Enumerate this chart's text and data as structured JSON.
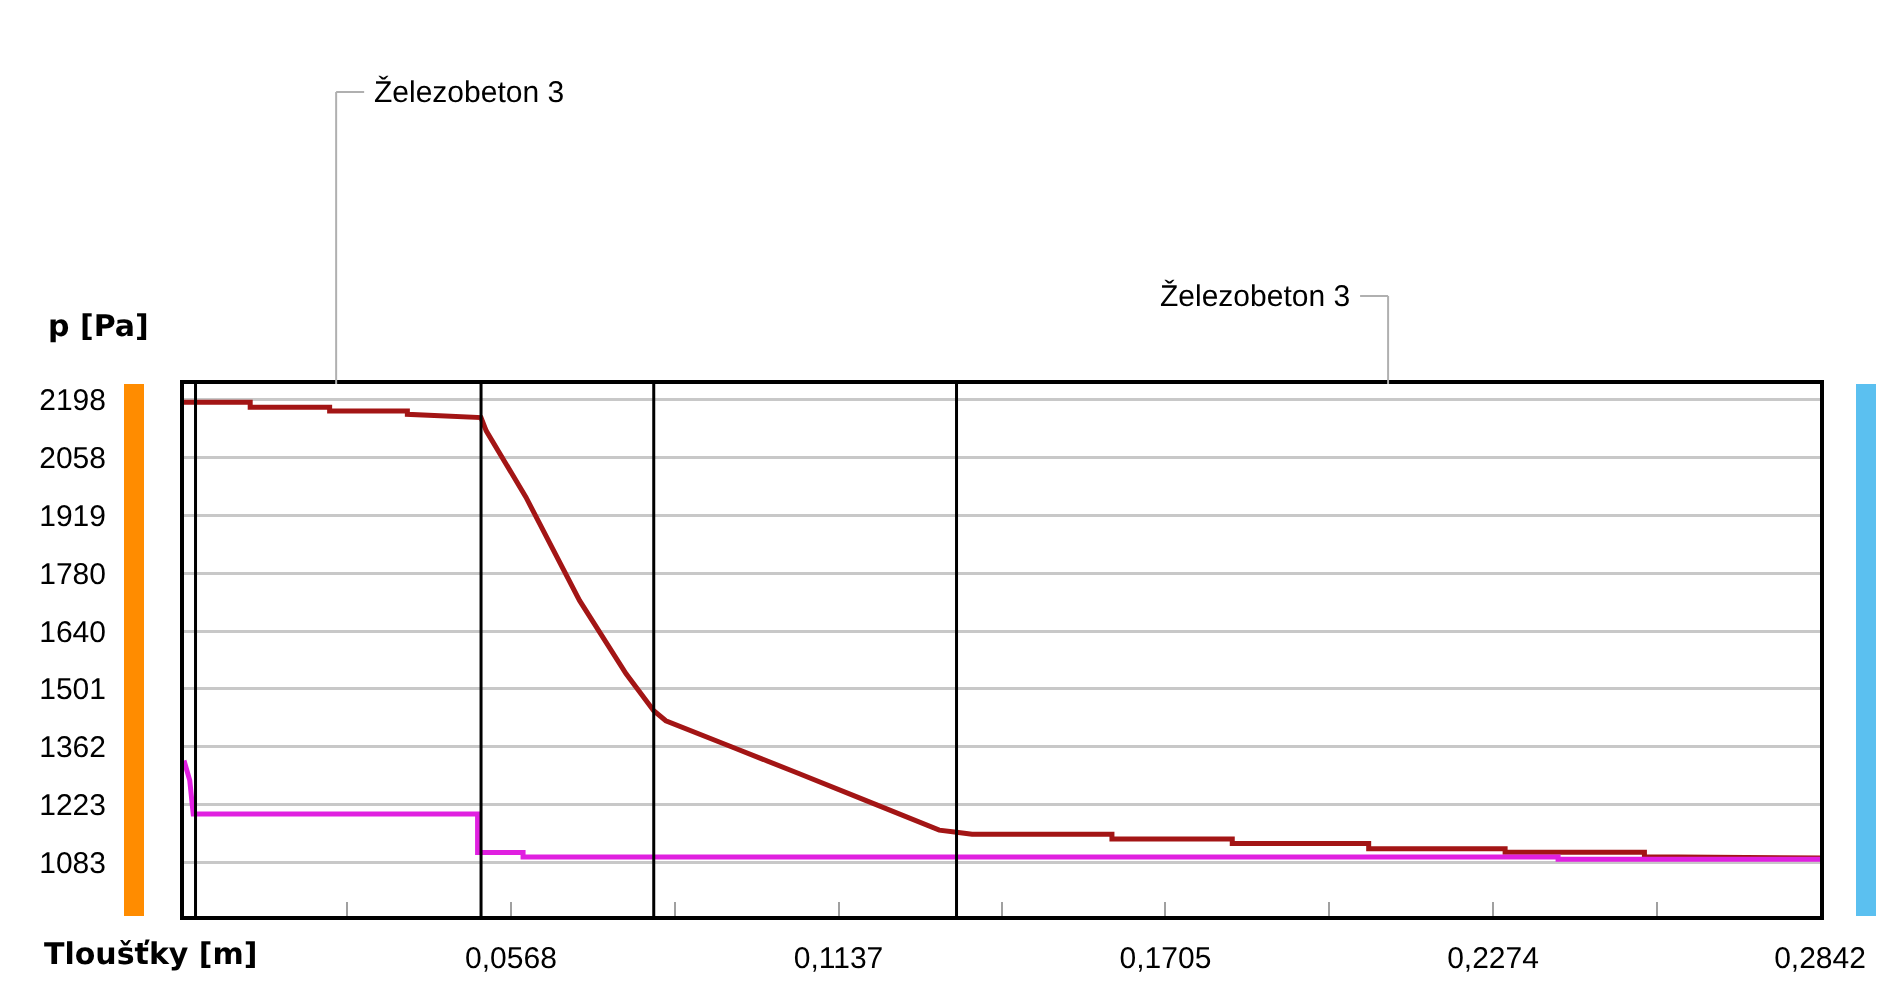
{
  "chart_data": {
    "type": "line",
    "ylabel": "p [Pa]",
    "xlabel": "Tloušťky [m]",
    "xlim": [
      0,
      0.2842
    ],
    "ylim": [
      953,
      2236
    ],
    "xticks": [
      {
        "value": 0.0284,
        "label": null
      },
      {
        "value": 0.0568,
        "label": "0,0568"
      },
      {
        "value": 0.0853,
        "label": null
      },
      {
        "value": 0.1137,
        "label": "0,1137"
      },
      {
        "value": 0.1421,
        "label": null
      },
      {
        "value": 0.1705,
        "label": "0,1705"
      },
      {
        "value": 0.1989,
        "label": null
      },
      {
        "value": 0.2274,
        "label": "0,2274"
      },
      {
        "value": 0.2558,
        "label": null
      },
      {
        "value": 0.2842,
        "label": "0,2842"
      }
    ],
    "yticks": [
      1083,
      1223,
      1362,
      1501,
      1640,
      1780,
      1919,
      2058,
      2198
    ],
    "grid": "y",
    "marker": "none",
    "line_style": "solid",
    "series": [
      {
        "color": "#a31515",
        "x": [
          0,
          0.0115,
          0.0115,
          0.0253,
          0.0253,
          0.0388,
          0.0388,
          0.0516,
          0.0525,
          0.0594,
          0.0687,
          0.0768,
          0.0816,
          0.0837,
          0.0953,
          0.1069,
          0.1184,
          0.1312,
          0.1342,
          0.1369,
          0.1612,
          0.1612,
          0.1821,
          0.1821,
          0.2058,
          0.2058,
          0.2295,
          0.2295,
          0.2537,
          0.2537,
          0.2842
        ],
        "values": [
          2192,
          2192,
          2180,
          2180,
          2171,
          2171,
          2163,
          2155,
          2123,
          1963,
          1714,
          1537,
          1448,
          1424,
          1360,
          1296,
          1232,
          1160,
          1155,
          1150,
          1150,
          1139,
          1139,
          1128,
          1128,
          1115,
          1115,
          1107,
          1107,
          1096,
          1093
        ]
      },
      {
        "color": "#e020e0",
        "x": [
          0,
          0.001,
          0.0016,
          0.051,
          0.051,
          0.0589,
          0.0589,
          0.2387,
          0.2387,
          0.2842
        ],
        "values": [
          1328,
          1280,
          1199,
          1199,
          1106,
          1106,
          1095,
          1095,
          1090,
          1090
        ]
      }
    ],
    "ref_lines": [
      {
        "axis": "x",
        "value": 0.002,
        "color": "#000000"
      },
      {
        "axis": "x",
        "value": 0.0516,
        "color": "#000000"
      },
      {
        "axis": "x",
        "value": 0.0816,
        "color": "#000000"
      },
      {
        "axis": "x",
        "value": 0.1342,
        "color": "#000000"
      }
    ],
    "annotations": [
      "Železobeton 3",
      "Železobeton 3"
    ]
  }
}
